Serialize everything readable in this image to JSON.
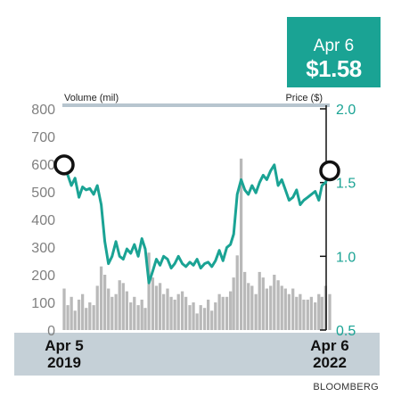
{
  "callout": {
    "date": "Apr 6",
    "value": "$1.58"
  },
  "source": "BLOOMBERG",
  "colors": {
    "price_line": "#1aa394",
    "volume_bars": "#b9b9b9",
    "date_band": "#c5d0d7",
    "top_rule": "#b7c5cf",
    "left_axis_text": "#808080",
    "right_axis_text": "#1aa394"
  },
  "chart_data": {
    "type": "line",
    "x_labels": [
      "Apr 5\n2019",
      "Apr 6\n2022"
    ],
    "x_range": [
      "2019-04-05",
      "2022-04-06"
    ],
    "grid": false,
    "left_axis": {
      "label": "Volume (mil)",
      "ticks": [
        0,
        100,
        200,
        300,
        400,
        500,
        600,
        700,
        800
      ],
      "ylim": [
        0,
        800
      ]
    },
    "right_axis": {
      "label": "Price ($)",
      "ticks": [
        "0.5",
        "1.0",
        "1.5",
        "2.0"
      ],
      "ylim": [
        0.5,
        2.0
      ]
    },
    "series": [
      {
        "kind": "line",
        "axis": "right",
        "x": [
          "2019-04-05",
          "2019-04-20",
          "2019-05-05",
          "2019-05-20",
          "2019-06-05",
          "2019-06-20",
          "2019-07-05",
          "2019-07-20",
          "2019-08-05",
          "2019-08-20",
          "2019-09-05",
          "2019-09-20",
          "2019-10-05",
          "2019-10-20",
          "2019-11-05",
          "2019-11-20",
          "2019-12-05",
          "2019-12-20",
          "2020-01-05",
          "2020-01-20",
          "2020-02-05",
          "2020-02-20",
          "2020-03-05",
          "2020-03-20",
          "2020-04-05",
          "2020-04-20",
          "2020-05-05",
          "2020-05-20",
          "2020-06-05",
          "2020-06-20",
          "2020-07-05",
          "2020-07-20",
          "2020-08-05",
          "2020-08-20",
          "2020-09-05",
          "2020-09-20",
          "2020-10-05",
          "2020-10-20",
          "2020-11-05",
          "2020-11-20",
          "2020-12-05",
          "2020-12-20",
          "2021-01-05",
          "2021-01-20",
          "2021-02-05",
          "2021-02-20",
          "2021-03-05",
          "2021-03-20",
          "2021-04-05",
          "2021-04-20",
          "2021-05-05",
          "2021-05-20",
          "2021-06-05",
          "2021-06-20",
          "2021-07-05",
          "2021-07-20",
          "2021-08-05",
          "2021-08-20",
          "2021-09-05",
          "2021-09-20",
          "2021-10-05",
          "2021-10-20",
          "2021-11-05",
          "2021-11-20",
          "2021-12-05",
          "2021-12-20",
          "2022-01-05",
          "2022-01-20",
          "2022-02-05",
          "2022-02-20",
          "2022-03-05",
          "2022-03-20",
          "2022-04-06"
        ],
        "values": [
          1.62,
          1.55,
          1.48,
          1.53,
          1.4,
          1.47,
          1.45,
          1.46,
          1.42,
          1.48,
          1.35,
          1.1,
          0.95,
          1.0,
          1.1,
          1.0,
          0.98,
          1.05,
          1.02,
          1.08,
          1.0,
          1.12,
          1.05,
          0.82,
          0.9,
          0.98,
          0.94,
          1.0,
          0.98,
          0.92,
          0.95,
          1.0,
          0.95,
          0.93,
          0.96,
          0.94,
          0.98,
          0.92,
          0.95,
          0.96,
          0.93,
          0.97,
          1.04,
          0.97,
          1.06,
          1.08,
          1.15,
          1.42,
          1.52,
          1.45,
          1.42,
          1.48,
          1.43,
          1.5,
          1.55,
          1.52,
          1.58,
          1.62,
          1.48,
          1.52,
          1.45,
          1.38,
          1.4,
          1.45,
          1.35,
          1.38,
          1.4,
          1.42,
          1.44,
          1.38,
          1.48,
          1.5,
          1.58
        ]
      },
      {
        "kind": "bar",
        "axis": "left",
        "name": "Volume",
        "values": [
          150,
          90,
          120,
          70,
          110,
          130,
          80,
          100,
          90,
          160,
          230,
          200,
          150,
          120,
          130,
          180,
          170,
          140,
          100,
          120,
          90,
          110,
          80,
          280,
          190,
          160,
          170,
          130,
          150,
          120,
          110,
          130,
          140,
          120,
          90,
          100,
          60,
          90,
          80,
          110,
          70,
          100,
          130,
          120,
          120,
          140,
          190,
          270,
          620,
          210,
          170,
          160,
          130,
          210,
          190,
          150,
          160,
          200,
          180,
          160,
          150,
          130,
          150,
          120,
          130,
          110,
          110,
          120,
          100,
          130,
          120,
          160,
          130
        ]
      }
    ]
  }
}
